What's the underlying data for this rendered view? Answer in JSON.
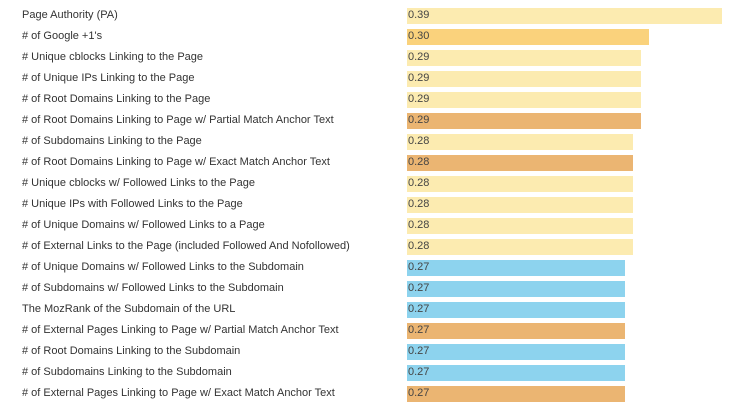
{
  "chart_data": {
    "type": "bar",
    "orientation": "horizontal",
    "xlim": [
      0,
      0.39
    ],
    "grid": false,
    "legend": "none",
    "categories": [
      "Page Authority (PA)",
      "# of Google +1's",
      "# Unique cblocks Linking to the Page",
      "# of Unique IPs Linking to the Page",
      "# of Root Domains Linking to the Page",
      "# of Root Domains Linking to Page w/ Partial Match Anchor Text",
      "# of Subdomains Linking to the Page",
      "# of Root Domains Linking to Page w/ Exact Match Anchor Text",
      "# Unique cblocks w/ Followed Links to the Page",
      "# Unique IPs with Followed Links to the Page",
      "# of Unique Domains w/ Followed Links to a Page",
      "# of External Links to the Page (included Followed And Nofollowed)",
      "# of Unique Domains w/ Followed Links to the Subdomain",
      "# of Subdomains w/ Followed Links to the Subdomain",
      "The MozRank of the Subdomain of the URL",
      "# of External Pages Linking to Page w/ Partial Match Anchor Text",
      "# of Root Domains Linking to the Subdomain",
      "# of Subdomains Linking to the Subdomain",
      "# of External Pages Linking to Page w/ Exact Match Anchor Text"
    ],
    "values": [
      0.39,
      0.3,
      0.29,
      0.29,
      0.29,
      0.29,
      0.28,
      0.28,
      0.28,
      0.28,
      0.28,
      0.28,
      0.27,
      0.27,
      0.27,
      0.27,
      0.27,
      0.27,
      0.27
    ],
    "value_labels": [
      "0.39",
      "0.30",
      "0.29",
      "0.29",
      "0.29",
      "0.29",
      "0.28",
      "0.28",
      "0.28",
      "0.28",
      "0.28",
      "0.28",
      "0.27",
      "0.27",
      "0.27",
      "0.27",
      "0.27",
      "0.27",
      "0.27"
    ],
    "bar_colors": [
      "#fcebb0",
      "#fad27c",
      "#fcebb0",
      "#fcebb0",
      "#fcebb0",
      "#ebb572",
      "#fcebb0",
      "#ebb572",
      "#fcebb0",
      "#fcebb0",
      "#fcebb0",
      "#fcebb0",
      "#8dd3ee",
      "#8dd3ee",
      "#8dd3ee",
      "#ebb572",
      "#8dd3ee",
      "#8dd3ee",
      "#ebb572"
    ]
  }
}
